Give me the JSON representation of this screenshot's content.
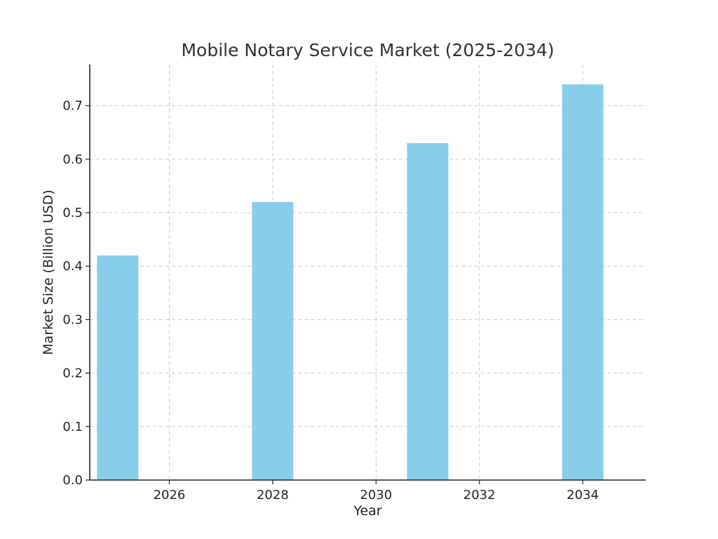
{
  "chart_data": {
    "type": "bar",
    "title": "Mobile Notary Service Market (2025-2034)",
    "xlabel": "Year",
    "ylabel": "Market Size (Billion USD)",
    "x": [
      2025,
      2028,
      2031,
      2034
    ],
    "values": [
      0.42,
      0.52,
      0.63,
      0.74
    ],
    "bar_width_years": 0.8,
    "xlim": [
      2024.46,
      2035.22
    ],
    "ylim": [
      0,
      0.777
    ],
    "x_ticks": [
      2026,
      2028,
      2030,
      2032,
      2034
    ],
    "y_ticks": [
      0.0,
      0.1,
      0.2,
      0.3,
      0.4,
      0.5,
      0.6,
      0.7
    ],
    "y_tick_labels": [
      "0.0",
      "0.1",
      "0.2",
      "0.3",
      "0.4",
      "0.5",
      "0.6",
      "0.7"
    ],
    "grid": true,
    "bar_color": "#87ceeb"
  }
}
